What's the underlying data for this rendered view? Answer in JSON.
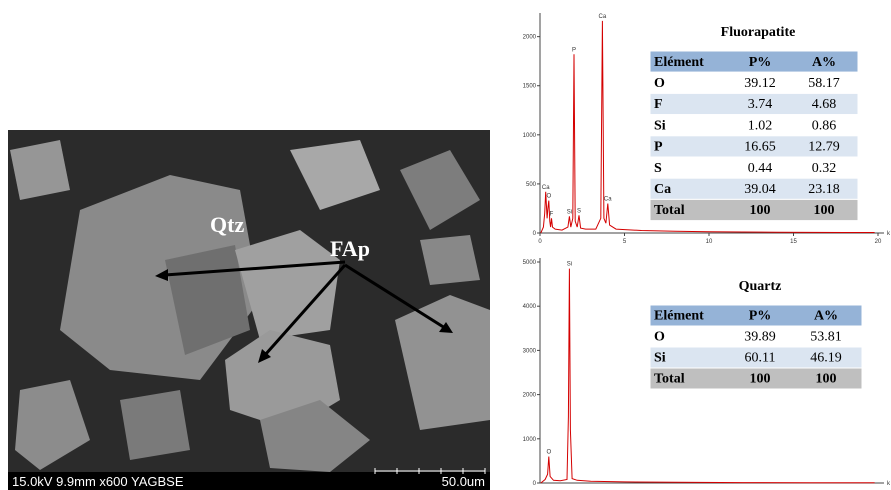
{
  "sem_image": {
    "labels": [
      "Qtz",
      "FAp"
    ],
    "info_bar": "15.0kV 9.9mm x600 YAGBSE",
    "scale_bar": "50.0um"
  },
  "chart_data": [
    {
      "type": "line",
      "color": "#d40000",
      "xlim": [
        0,
        20
      ],
      "xticks": [
        0,
        5,
        10,
        15,
        20
      ],
      "x_label": "k",
      "ylim": [
        0,
        2200
      ],
      "yticks": [
        0,
        500,
        1000,
        1500,
        2000
      ],
      "x": [
        0.05,
        0.2,
        0.28,
        0.34,
        0.42,
        0.47,
        0.52,
        0.58,
        0.63,
        0.68,
        0.74,
        0.9,
        1.3,
        1.65,
        1.74,
        1.82,
        1.94,
        2.01,
        2.08,
        2.2,
        2.31,
        2.4,
        2.7,
        3.3,
        3.6,
        3.69,
        3.78,
        3.9,
        4.01,
        4.12,
        4.5,
        6,
        8,
        10,
        12,
        14,
        16,
        18,
        19.8
      ],
      "values": [
        0,
        60,
        200,
        420,
        150,
        250,
        330,
        120,
        60,
        150,
        60,
        40,
        30,
        60,
        170,
        60,
        150,
        1820,
        120,
        60,
        180,
        50,
        40,
        40,
        150,
        2160,
        150,
        100,
        300,
        80,
        40,
        25,
        18,
        12,
        10,
        8,
        6,
        5,
        5
      ],
      "annotations": [
        {
          "text": "Ca",
          "x": 0.34,
          "y": 420
        },
        {
          "text": "O",
          "x": 0.52,
          "y": 330
        },
        {
          "text": "F",
          "x": 0.68,
          "y": 150
        },
        {
          "text": "Si",
          "x": 1.74,
          "y": 170
        },
        {
          "text": "S",
          "x": 2.31,
          "y": 180
        },
        {
          "text": "P",
          "x": 2.01,
          "y": 1820
        },
        {
          "text": "Ca",
          "x": 3.69,
          "y": 2160
        },
        {
          "text": "Ca",
          "x": 4.01,
          "y": 300
        }
      ]
    },
    {
      "type": "line",
      "color": "#d40000",
      "xlim": [
        0,
        20
      ],
      "x_label": "k",
      "ylim": [
        0,
        5000
      ],
      "yticks": [
        0,
        1000,
        2000,
        3000,
        4000,
        5000
      ],
      "x": [
        0.05,
        0.3,
        0.45,
        0.52,
        0.6,
        0.8,
        1.2,
        1.6,
        1.68,
        1.74,
        1.8,
        1.9,
        2.2,
        3,
        5,
        8,
        12,
        16,
        19.8
      ],
      "values": [
        0,
        80,
        200,
        600,
        150,
        60,
        50,
        80,
        1500,
        4850,
        1200,
        100,
        60,
        40,
        25,
        15,
        10,
        6,
        5
      ],
      "annotations": [
        {
          "text": "O",
          "x": 0.52,
          "y": 600
        },
        {
          "text": "Si",
          "x": 1.74,
          "y": 4850
        }
      ]
    }
  ],
  "tables": [
    {
      "title": "Fluorapatite",
      "header": [
        "Elément",
        "P%",
        "A%"
      ],
      "rows": [
        [
          "O",
          39.12,
          58.17
        ],
        [
          "F",
          3.74,
          4.68
        ],
        [
          "Si",
          1.02,
          0.86
        ],
        [
          "P",
          16.65,
          12.79
        ],
        [
          "S",
          0.44,
          0.32
        ],
        [
          "Ca",
          39.04,
          23.18
        ]
      ],
      "total": [
        "Total",
        100,
        100
      ]
    },
    {
      "title": "Quartz",
      "header": [
        "Elément",
        "P%",
        "A%"
      ],
      "rows": [
        [
          "O",
          39.89,
          53.81
        ],
        [
          "Si",
          60.11,
          46.19
        ]
      ],
      "total": [
        "Total",
        100,
        100
      ]
    }
  ]
}
